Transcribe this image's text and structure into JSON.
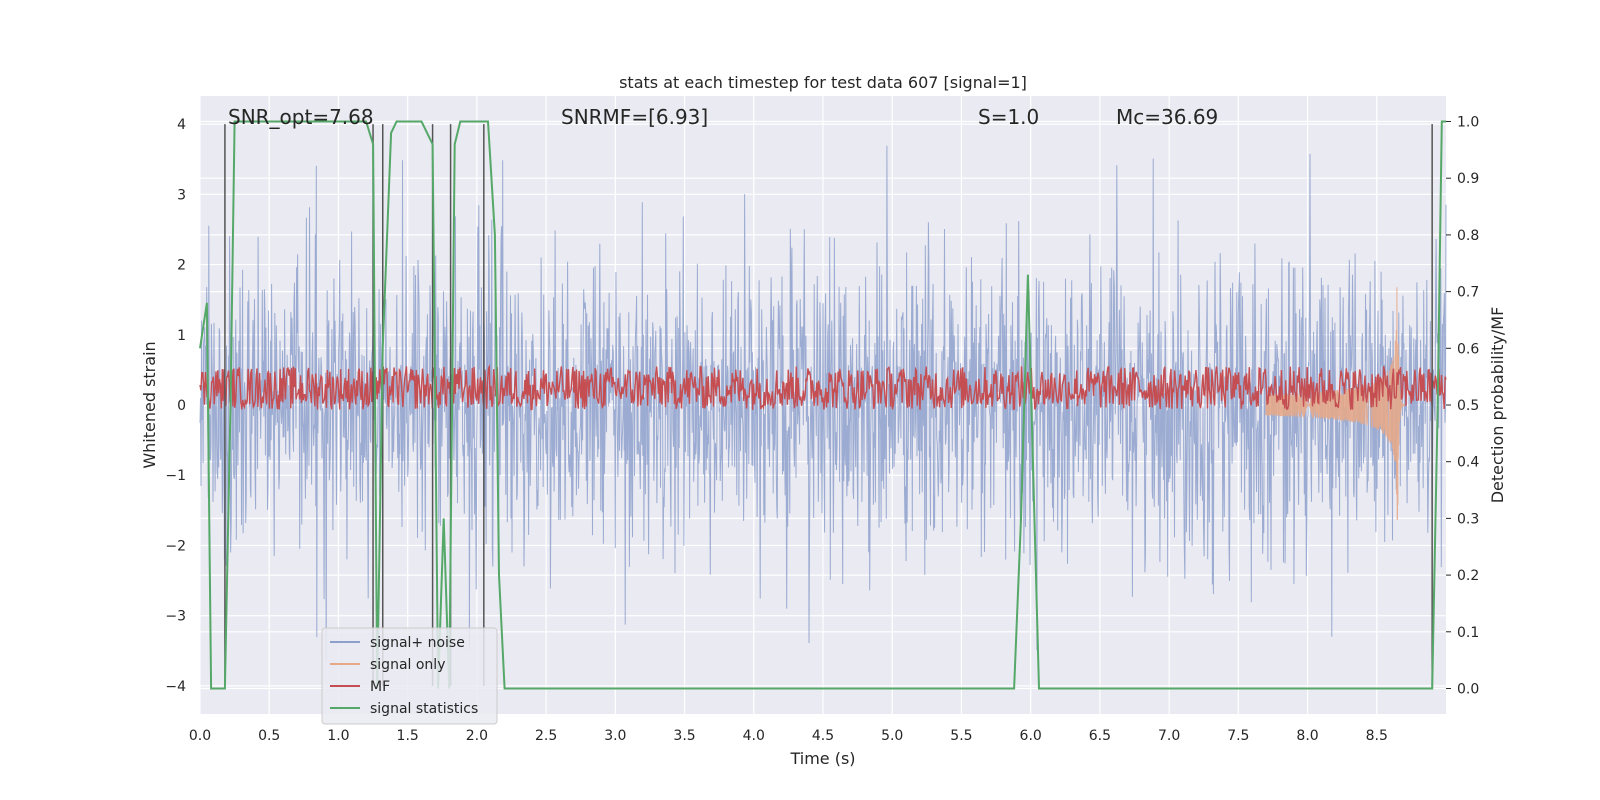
{
  "chart_data": {
    "type": "line",
    "title": "stats at each timestep for test data 607 [signal=1]",
    "xlabel": "Time (s)",
    "ylabel": "Whitened strain",
    "y2label": "Detection probability/MF",
    "xlim": [
      0.0,
      9.0
    ],
    "ylim": [
      -4.4,
      4.4
    ],
    "y2lim": [
      -0.045,
      1.045
    ],
    "xticks": [
      "0.0",
      "0.5",
      "1.0",
      "1.5",
      "2.0",
      "2.5",
      "3.0",
      "3.5",
      "4.0",
      "4.5",
      "5.0",
      "5.5",
      "6.0",
      "6.5",
      "7.0",
      "7.5",
      "8.0",
      "8.5"
    ],
    "yticks": [
      "−4",
      "−3",
      "−2",
      "−1",
      "0",
      "1",
      "2",
      "3",
      "4"
    ],
    "y2ticks": [
      "0.0",
      "0.1",
      "0.2",
      "0.3",
      "0.4",
      "0.5",
      "0.6",
      "0.7",
      "0.8",
      "0.9",
      "1.0"
    ],
    "grid": true,
    "legend_position": "lower-left",
    "annotations": [
      {
        "id": "snr-opt",
        "text": "SNR_opt=7.68",
        "x": 0.2
      },
      {
        "id": "snr-mf",
        "text": "SNRMF=[6.93]",
        "x": 2.6
      },
      {
        "id": "s",
        "text": "S=1.0",
        "x": 5.6
      },
      {
        "id": "mc",
        "text": "Mc=36.69",
        "x": 6.6
      }
    ],
    "series": [
      {
        "name": "signal+ noise",
        "color": "#8da0cb",
        "style": "dense-noise",
        "amplitude_std": 1.0,
        "peak_abs": 4.0
      },
      {
        "name": "signal only",
        "color": "#e5a98a",
        "style": "chirp",
        "merger_time": 8.65,
        "peak": 2.0
      },
      {
        "name": "MF",
        "color": "#c44e52",
        "style": "noise-band",
        "mean": 0.53,
        "range": [
          0.5,
          0.57
        ]
      },
      {
        "name": "signal statistics",
        "color": "#55a868",
        "x": [
          0.0,
          0.05,
          0.08,
          0.12,
          0.18,
          0.22,
          0.25,
          0.3,
          0.5,
          1.0,
          1.2,
          1.25,
          1.28,
          1.32,
          1.38,
          1.42,
          1.5,
          1.6,
          1.68,
          1.72,
          1.76,
          1.8,
          1.84,
          1.88,
          1.92,
          2.0,
          2.08,
          2.13,
          2.16,
          2.2,
          3.0,
          4.0,
          5.0,
          5.88,
          5.93,
          5.98,
          6.06,
          7.0,
          8.0,
          8.9,
          8.94,
          8.97,
          9.0
        ],
        "y": [
          0.6,
          0.68,
          0.0,
          0.0,
          0.0,
          0.5,
          1.0,
          1.0,
          1.0,
          1.0,
          1.0,
          0.96,
          0.0,
          0.6,
          0.98,
          1.0,
          1.0,
          1.0,
          0.96,
          0.0,
          0.3,
          0.0,
          0.96,
          1.0,
          1.0,
          1.0,
          1.0,
          0.8,
          0.2,
          0.0,
          0.0,
          0.0,
          0.0,
          0.0,
          0.3,
          0.73,
          0.0,
          0.0,
          0.0,
          0.0,
          0.5,
          1.0,
          1.0
        ]
      }
    ],
    "vlines": {
      "color": "#555555",
      "x": [
        0.18,
        1.25,
        1.32,
        1.68,
        1.81,
        2.05,
        8.9
      ],
      "y_range": [
        -4.0,
        4.0
      ]
    }
  }
}
